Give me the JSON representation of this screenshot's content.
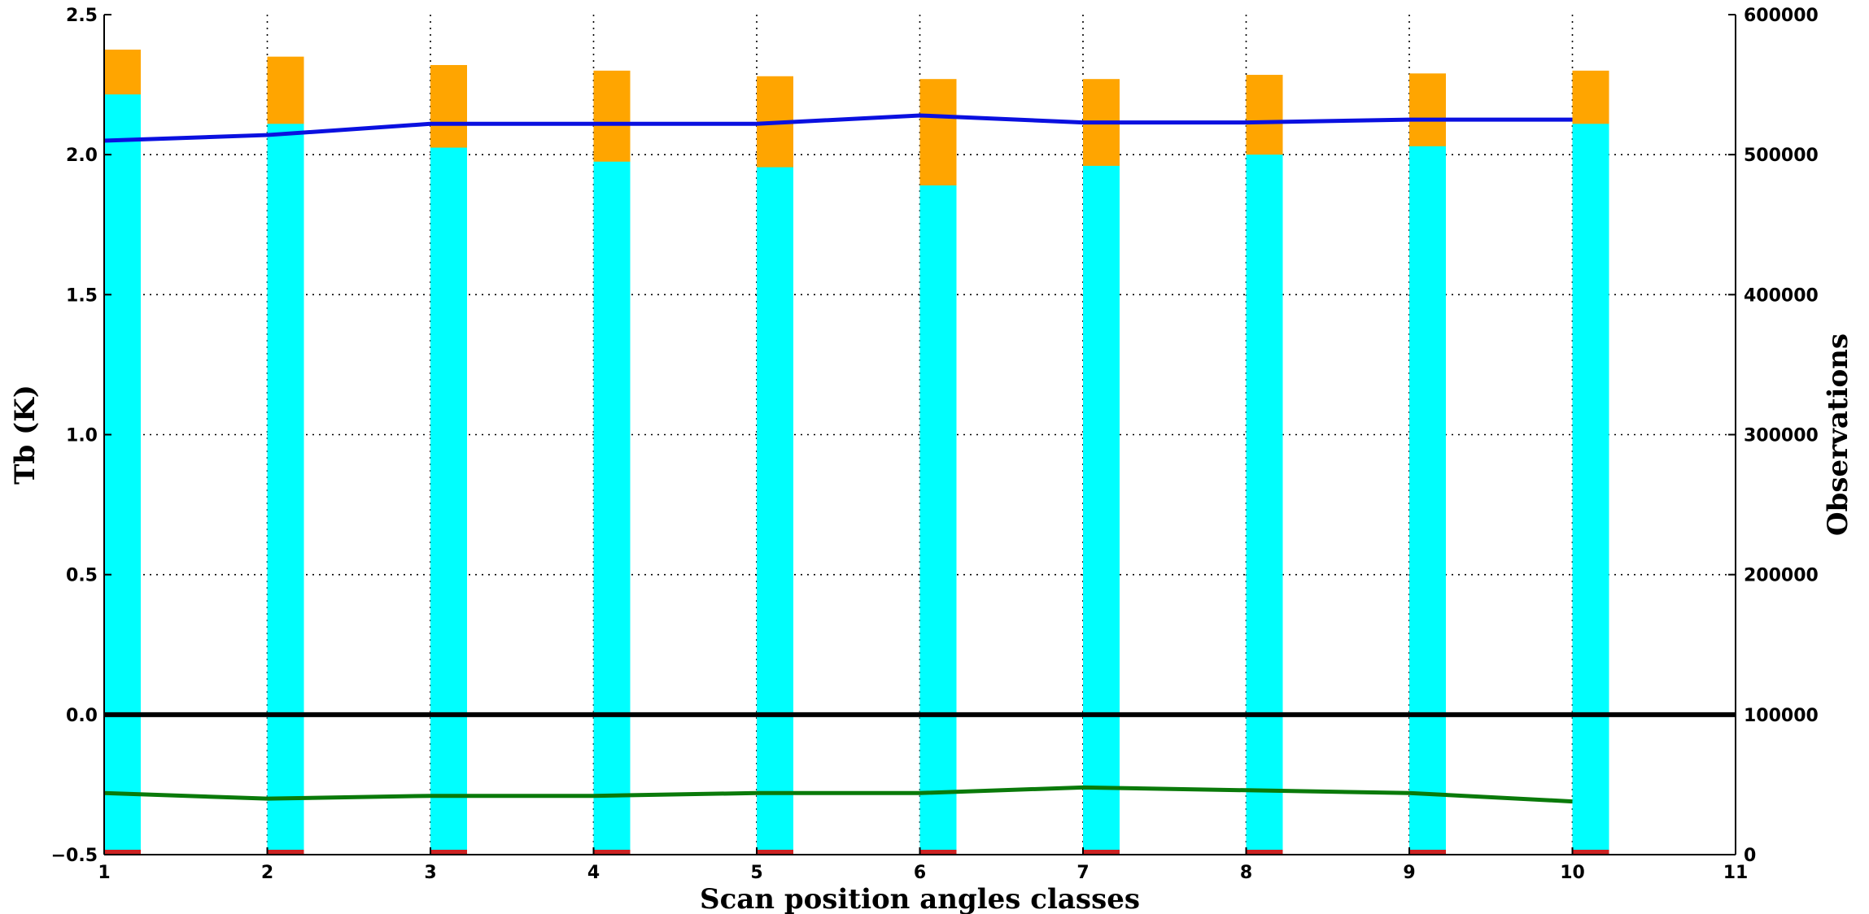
{
  "chart_data": {
    "type": "bar",
    "title": "",
    "xlabel": "Scan position angles classes",
    "ylabel": "Tb (K)",
    "y2label": "Observations",
    "x_ticks": [
      1,
      2,
      3,
      4,
      5,
      6,
      7,
      8,
      9,
      10,
      11
    ],
    "xlim": [
      1,
      11
    ],
    "ylim": [
      -0.5,
      2.5
    ],
    "y_ticks": [
      -0.5,
      0.0,
      0.5,
      1.0,
      1.5,
      2.0,
      2.5
    ],
    "y_tick_labels": [
      "−0.5",
      "0.0",
      "0.5",
      "1.0",
      "1.5",
      "2.0",
      "2.5"
    ],
    "y2lim": [
      0,
      600000
    ],
    "y2_ticks": [
      0,
      100000,
      200000,
      300000,
      400000,
      500000,
      600000
    ],
    "grid": true,
    "legend": "none",
    "categories": [
      1,
      2,
      3,
      4,
      5,
      6,
      7,
      8,
      9,
      10
    ],
    "bar_series": [
      {
        "color": "#ffa500",
        "axis": "observations",
        "values": [
          575000,
          570000,
          564000,
          560000,
          556000,
          554000,
          554000,
          557000,
          558000,
          560000
        ]
      },
      {
        "color": "#00ffff",
        "axis": "observations",
        "values": [
          543000,
          522000,
          505000,
          495000,
          491000,
          478000,
          492000,
          500000,
          506000,
          522000
        ]
      },
      {
        "color": "#cc2222",
        "axis": "observations",
        "values": [
          3500,
          3500,
          3500,
          3500,
          3500,
          3500,
          3500,
          3500,
          3500,
          3500
        ]
      }
    ],
    "line_series": [
      {
        "color": "#0a10e0",
        "axis": "observations",
        "x": [
          1,
          2,
          3,
          4,
          5,
          6,
          7,
          8,
          9,
          10
        ],
        "values": [
          510000,
          514000,
          522000,
          522000,
          522000,
          528000,
          523000,
          523000,
          525000,
          525000
        ]
      },
      {
        "color": "#0a7a0a",
        "axis": "tb",
        "x": [
          1,
          2,
          3,
          4,
          5,
          6,
          7,
          8,
          9,
          10
        ],
        "values": [
          -0.28,
          -0.3,
          -0.29,
          -0.29,
          -0.28,
          -0.28,
          -0.26,
          -0.27,
          -0.28,
          -0.31
        ]
      }
    ],
    "reference_line": {
      "y": 0.0,
      "color": "#000000"
    }
  }
}
